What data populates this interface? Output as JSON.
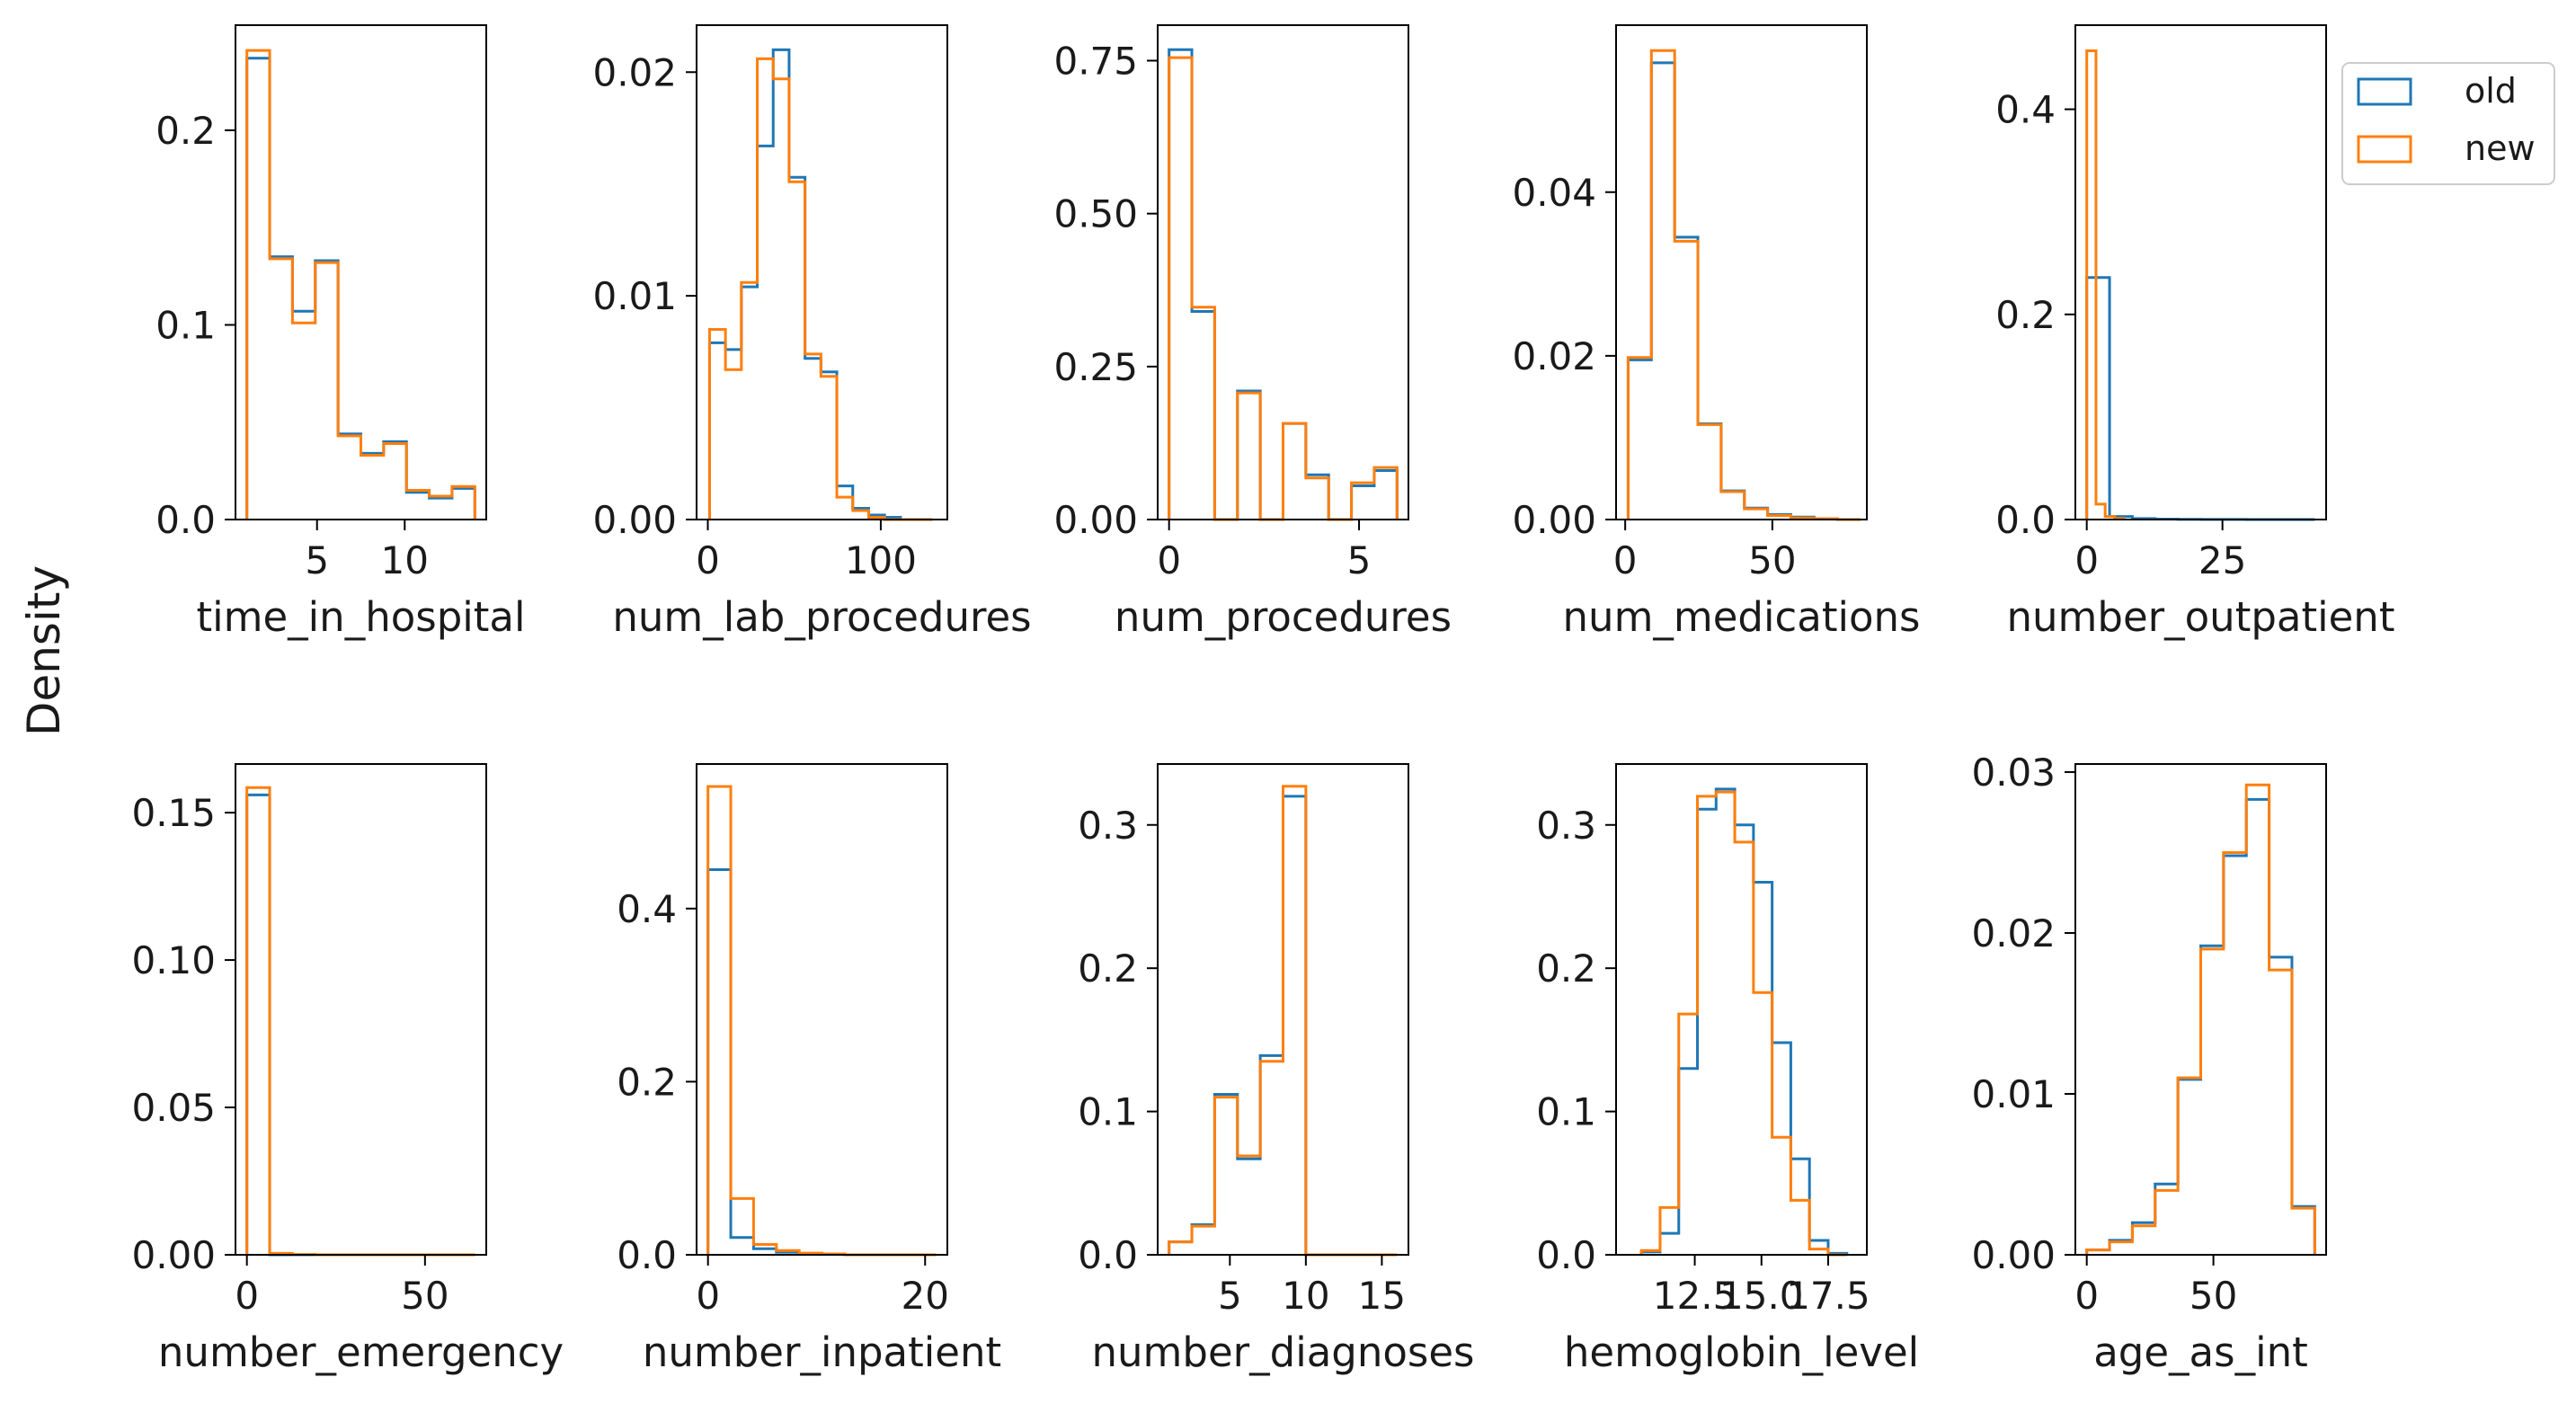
{
  "figure": {
    "ylabel": "Density",
    "legend": {
      "placement": "right of top-right subplot",
      "entries": [
        {
          "label": "old",
          "color": "#1f77b4"
        },
        {
          "label": "new",
          "color": "#ff7f0e"
        }
      ]
    }
  },
  "chart_data": [
    {
      "type": "histogram",
      "xlabel": "time_in_hospital",
      "xlim": [
        0.35,
        14.65
      ],
      "ylim": [
        0,
        0.254
      ],
      "xticks": [
        5,
        10
      ],
      "yticks": [
        0.0,
        0.1,
        0.2
      ],
      "ytick_labels": [
        "0.0",
        "0.1",
        "0.2"
      ],
      "bins": [
        1,
        2.3,
        3.6,
        4.9,
        6.2,
        7.5,
        8.8,
        10.1,
        11.4,
        12.7,
        14
      ],
      "series": [
        {
          "name": "old",
          "color": "#1f77b4",
          "values": [
            0.237,
            0.135,
            0.107,
            0.133,
            0.044,
            0.034,
            0.04,
            0.014,
            0.011,
            0.016
          ]
        },
        {
          "name": "new",
          "color": "#ff7f0e",
          "values": [
            0.241,
            0.134,
            0.101,
            0.132,
            0.043,
            0.033,
            0.039,
            0.015,
            0.012,
            0.017
          ]
        }
      ]
    },
    {
      "type": "histogram",
      "xlabel": "num_lab_procedures",
      "xlim": [
        -6.5,
        138.5
      ],
      "ylim": [
        0,
        0.0221
      ],
      "xticks": [
        0,
        100
      ],
      "yticks": [
        0.0,
        0.01,
        0.02
      ],
      "ytick_labels": [
        "0.00",
        "0.01",
        "0.02"
      ],
      "bins": [
        1,
        10.2,
        19.4,
        28.6,
        37.8,
        47,
        56.2,
        65.4,
        74.6,
        83.8,
        93,
        102.2,
        111.4,
        120.6,
        129.8
      ],
      "series": [
        {
          "name": "old",
          "color": "#1f77b4",
          "values": [
            0.0079,
            0.0076,
            0.0104,
            0.0167,
            0.021,
            0.0153,
            0.0072,
            0.0066,
            0.0015,
            0.0005,
            0.0002,
            0.0001,
            0.0,
            0.0
          ]
        },
        {
          "name": "new",
          "color": "#ff7f0e",
          "values": [
            0.0085,
            0.0067,
            0.0106,
            0.0206,
            0.0197,
            0.0151,
            0.0074,
            0.0064,
            0.001,
            0.0004,
            0.0001,
            0.0,
            0.0,
            0.0
          ]
        }
      ]
    },
    {
      "type": "histogram",
      "xlabel": "num_procedures",
      "xlim": [
        -0.3,
        6.3
      ],
      "ylim": [
        0,
        0.808
      ],
      "xticks": [
        0,
        5
      ],
      "yticks": [
        0.0,
        0.25,
        0.5,
        0.75
      ],
      "ytick_labels": [
        "0.00",
        "0.25",
        "0.50",
        "0.75"
      ],
      "bins": [
        0,
        0.6,
        1.2,
        1.8,
        2.4,
        3.0,
        3.6,
        4.2,
        4.8,
        5.4,
        6.0
      ],
      "series": [
        {
          "name": "old",
          "color": "#1f77b4",
          "values": [
            0.768,
            0.34,
            0,
            0.21,
            0,
            0.157,
            0.073,
            0,
            0.055,
            0.08
          ]
        },
        {
          "name": "new",
          "color": "#ff7f0e",
          "values": [
            0.755,
            0.347,
            0,
            0.207,
            0,
            0.157,
            0.068,
            0,
            0.06,
            0.085
          ]
        }
      ]
    },
    {
      "type": "histogram",
      "xlabel": "num_medications",
      "xlim": [
        -3.1,
        82.1
      ],
      "ylim": [
        0,
        0.0604
      ],
      "xticks": [
        0,
        50
      ],
      "yticks": [
        0.0,
        0.02,
        0.04
      ],
      "ytick_labels": [
        "0.00",
        "0.02",
        "0.04"
      ],
      "bins": [
        1,
        8.9,
        16.8,
        24.7,
        32.6,
        40.5,
        48.4,
        56.3,
        64.2,
        72.1,
        80
      ],
      "series": [
        {
          "name": "old",
          "color": "#1f77b4",
          "values": [
            0.0195,
            0.0558,
            0.0345,
            0.0117,
            0.0035,
            0.0014,
            0.0006,
            0.0003,
            0.0001,
            0.0
          ]
        },
        {
          "name": "new",
          "color": "#ff7f0e",
          "values": [
            0.0198,
            0.0573,
            0.034,
            0.0116,
            0.0034,
            0.0013,
            0.0005,
            0.0002,
            0.0001,
            0.0
          ]
        }
      ]
    },
    {
      "type": "histogram",
      "xlabel": "number_outpatient",
      "xlim": [
        -2.1,
        44.1
      ],
      "ylim": [
        0,
        0.482
      ],
      "xticks": [
        0,
        25
      ],
      "yticks": [
        0.0,
        0.2,
        0.4
      ],
      "ytick_labels": [
        "0.0",
        "0.2",
        "0.4"
      ],
      "bins_old": [
        0,
        4.2,
        8.4,
        12.6,
        16.8,
        21,
        25.2,
        29.4,
        33.6,
        37.8,
        42
      ],
      "bins_new": [
        0,
        1.7,
        3.4,
        5.1,
        6.8
      ],
      "series": [
        {
          "name": "old",
          "color": "#1f77b4",
          "bins_key": "bins_old",
          "values": [
            0.236,
            0.003,
            0.001,
            0.0004,
            0.0002,
            0.0001,
            0.0001,
            0.0,
            0.0,
            0.0
          ]
        },
        {
          "name": "new",
          "color": "#ff7f0e",
          "bins_key": "bins_new",
          "values": [
            0.457,
            0.015,
            0.003,
            0.001
          ]
        }
      ]
    },
    {
      "type": "histogram",
      "xlabel": "number_emergency",
      "xlim": [
        -3.2,
        67.2
      ],
      "ylim": [
        0,
        0.1665
      ],
      "xticks": [
        0,
        50
      ],
      "yticks": [
        0.0,
        0.05,
        0.1,
        0.15
      ],
      "ytick_labels": [
        "0.00",
        "0.05",
        "0.10",
        "0.15"
      ],
      "bins": [
        0,
        6.4,
        12.8,
        19.2,
        25.6,
        32,
        38.4,
        44.8,
        51.2,
        57.6,
        64
      ],
      "series": [
        {
          "name": "old",
          "color": "#1f77b4",
          "values": [
            0.156,
            0.0,
            0.0,
            0.0,
            0.0,
            0.0,
            0.0,
            0.0,
            0.0,
            0.0
          ]
        },
        {
          "name": "new",
          "color": "#ff7f0e",
          "values": [
            0.1585,
            0.0005,
            0.0001,
            0.0,
            0.0,
            0.0,
            0.0,
            0.0,
            0.0,
            0.0
          ]
        }
      ]
    },
    {
      "type": "histogram",
      "xlabel": "number_inpatient",
      "xlim": [
        -1.05,
        22.05
      ],
      "ylim": [
        0,
        0.567
      ],
      "xticks": [
        0,
        20
      ],
      "yticks": [
        0.0,
        0.2,
        0.4
      ],
      "ytick_labels": [
        "0.0",
        "0.2",
        "0.4"
      ],
      "bins": [
        0,
        2.1,
        4.2,
        6.3,
        8.4,
        10.5,
        12.6,
        14.7,
        16.8,
        18.9,
        21
      ],
      "series": [
        {
          "name": "old",
          "color": "#1f77b4",
          "values": [
            0.445,
            0.02,
            0.007,
            0.003,
            0.001,
            0.0005,
            0.0,
            0.0,
            0.0,
            0.0
          ]
        },
        {
          "name": "new",
          "color": "#ff7f0e",
          "values": [
            0.541,
            0.065,
            0.012,
            0.005,
            0.002,
            0.001,
            0.0,
            0.0,
            0.0,
            0.0
          ]
        }
      ]
    },
    {
      "type": "histogram",
      "xlabel": "number_diagnoses",
      "xlim": [
        0.25,
        16.75
      ],
      "ylim": [
        0,
        0.3425
      ],
      "xticks": [
        5,
        10,
        15
      ],
      "yticks": [
        0.0,
        0.1,
        0.2,
        0.3
      ],
      "ytick_labels": [
        "0.0",
        "0.1",
        "0.2",
        "0.3"
      ],
      "bins": [
        1,
        2.5,
        4,
        5.5,
        7,
        8.5,
        10,
        11.5,
        13,
        14.5,
        16
      ],
      "series": [
        {
          "name": "old",
          "color": "#1f77b4",
          "values": [
            0.009,
            0.021,
            0.112,
            0.067,
            0.139,
            0.32,
            0.0,
            0.0,
            0.0,
            0.0
          ]
        },
        {
          "name": "new",
          "color": "#ff7f0e",
          "values": [
            0.009,
            0.02,
            0.11,
            0.069,
            0.135,
            0.327,
            0.0,
            0.0,
            0.0,
            0.0
          ]
        }
      ]
    },
    {
      "type": "histogram",
      "xlabel": "hemoglobin_level",
      "xlim": [
        9.55,
        18.95
      ],
      "ylim": [
        0,
        0.3425
      ],
      "xticks": [
        12.5,
        15.0,
        17.5
      ],
      "yticks": [
        0.0,
        0.1,
        0.2,
        0.3
      ],
      "ytick_labels": [
        "0.0",
        "0.1",
        "0.2",
        "0.3"
      ],
      "xtick_labels": [
        "12.5",
        "15.0",
        "17.5"
      ],
      "bins": [
        10.5,
        11.2,
        11.9,
        12.6,
        13.3,
        14.0,
        14.7,
        15.4,
        16.1,
        16.8,
        17.5,
        18.2
      ],
      "series": [
        {
          "name": "old",
          "color": "#1f77b4",
          "values": [
            0.002,
            0.015,
            0.13,
            0.311,
            0.325,
            0.3,
            0.26,
            0.148,
            0.067,
            0.01,
            0.001
          ]
        },
        {
          "name": "new",
          "color": "#ff7f0e",
          "values": [
            0.003,
            0.033,
            0.168,
            0.32,
            0.323,
            0.288,
            0.183,
            0.082,
            0.038,
            0.004,
            0.0
          ]
        }
      ]
    },
    {
      "type": "histogram",
      "xlabel": "age_as_int",
      "xlim": [
        -4.5,
        94.5
      ],
      "ylim": [
        0,
        0.0305
      ],
      "xticks": [
        0,
        50
      ],
      "yticks": [
        0.0,
        0.01,
        0.02,
        0.03
      ],
      "ytick_labels": [
        "0.00",
        "0.01",
        "0.02",
        "0.03"
      ],
      "bins": [
        0,
        9,
        18,
        27,
        36,
        45,
        54,
        63,
        72,
        81,
        90
      ],
      "series": [
        {
          "name": "old",
          "color": "#1f77b4",
          "values": [
            0.0003,
            0.0009,
            0.002,
            0.0044,
            0.0109,
            0.0192,
            0.0248,
            0.0283,
            0.0185,
            0.003
          ]
        },
        {
          "name": "new",
          "color": "#ff7f0e",
          "values": [
            0.0003,
            0.0008,
            0.0018,
            0.004,
            0.011,
            0.019,
            0.025,
            0.0292,
            0.0177,
            0.0029
          ]
        }
      ]
    }
  ]
}
